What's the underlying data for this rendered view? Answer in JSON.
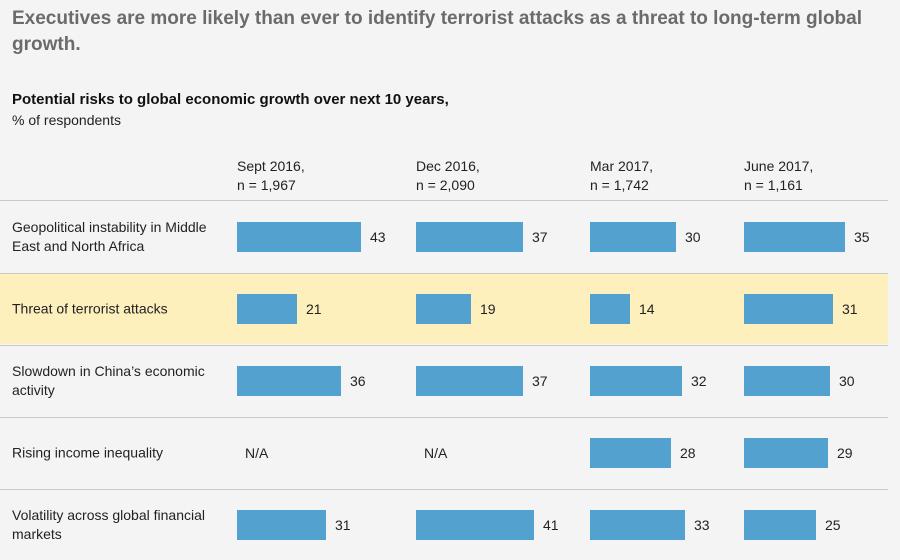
{
  "chart_data": {
    "type": "bar",
    "title": "Executives are more likely than ever to identify terrorist attacks as a threat to long-term global growth.",
    "subtitle": "Potential risks to global economic growth over next 10 years,",
    "unit_label": "% of respondents",
    "columns": [
      {
        "line1": "Sept 2016,",
        "line2": "n = 1,967"
      },
      {
        "line1": "Dec 2016,",
        "line2": "n = 2,090"
      },
      {
        "line1": "Mar 2017,",
        "line2": "n = 1,742"
      },
      {
        "line1": "June 2017,",
        "line2": "n = 1,161"
      }
    ],
    "rows": [
      {
        "label": "Geopolitical instability in Middle East and North Africa",
        "values": [
          43,
          37,
          30,
          35
        ],
        "highlight": false
      },
      {
        "label": "Threat of terrorist attacks",
        "values": [
          21,
          19,
          14,
          31
        ],
        "highlight": true
      },
      {
        "label": "Slowdown in China’s economic activity",
        "values": [
          36,
          37,
          32,
          30
        ],
        "highlight": false
      },
      {
        "label": "Rising income inequality",
        "values": [
          null,
          null,
          28,
          29
        ],
        "highlight": false
      },
      {
        "label": "Volatility across global financial markets",
        "values": [
          31,
          41,
          33,
          25
        ],
        "highlight": false
      }
    ],
    "na_label": "N/A",
    "bar_color": "#52a1cf",
    "highlight_color": "#fdf0bd"
  }
}
